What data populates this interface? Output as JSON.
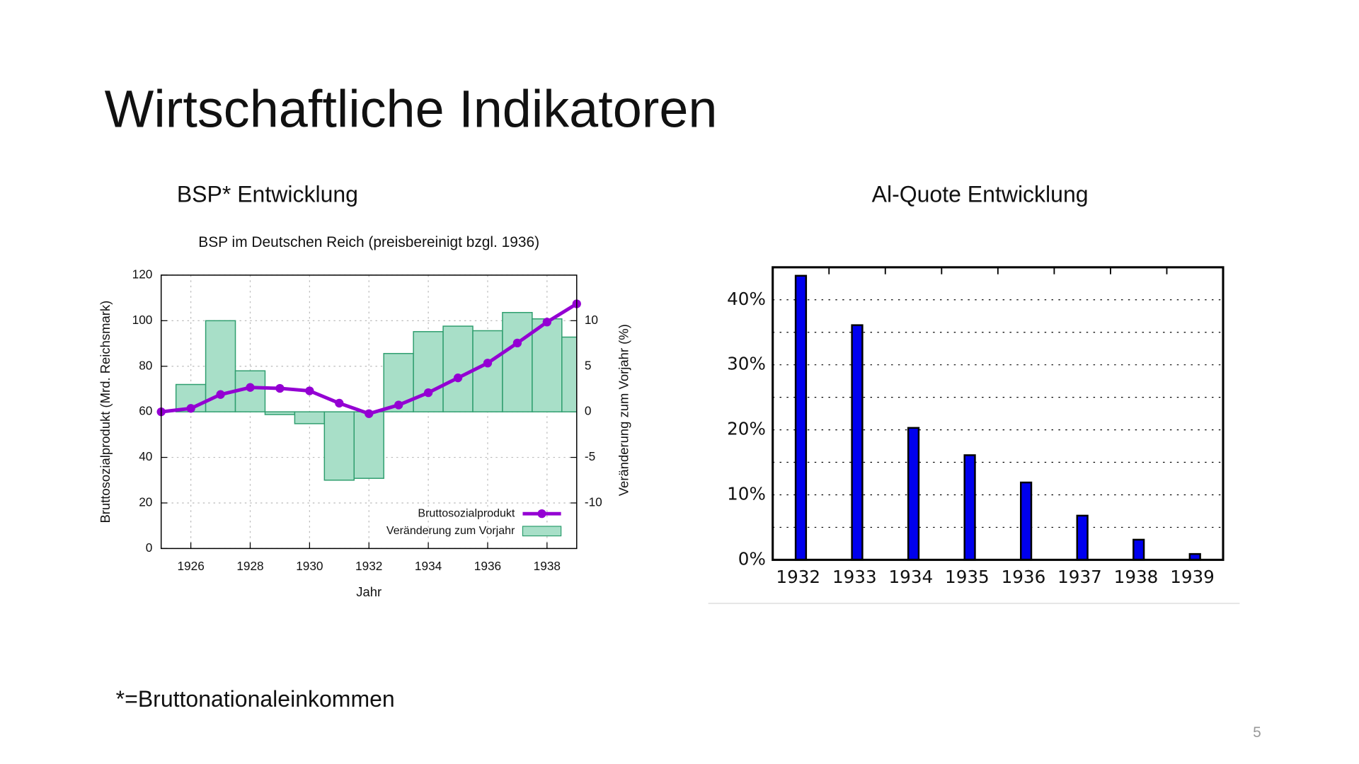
{
  "title": "Wirtschaftliche Indikatoren",
  "footnote": "*=Bruttonationaleinkommen",
  "page_number": "5",
  "chart_data": [
    {
      "type": "combo",
      "heading": "BSP* Entwicklung",
      "title": "BSP im Deutschen Reich (preisbereinigt bzgl. 1936)",
      "x_label": "Jahr",
      "y_label": "Bruttosozialprodukt (Mrd. Reichsmark)",
      "y2_label": "Veränderung zum Vorjahr (%)",
      "x": [
        1925,
        1926,
        1927,
        1928,
        1929,
        1930,
        1931,
        1932,
        1933,
        1934,
        1935,
        1936,
        1937,
        1938,
        1939
      ],
      "xlim": [
        1925,
        1939
      ],
      "xticks": [
        1926,
        1928,
        1930,
        1932,
        1934,
        1936,
        1938
      ],
      "ylim": [
        0,
        120
      ],
      "yticks": [
        0,
        20,
        40,
        60,
        80,
        100,
        120
      ],
      "y2lim": [
        -15,
        15
      ],
      "y2ticks": [
        -10,
        -5,
        0,
        5,
        10
      ],
      "grid": true,
      "legend": "lower right",
      "series": [
        {
          "name": "Bruttosozialprodukt",
          "type": "line",
          "color": "#9400d3",
          "values": [
            60,
            61.5,
            67.6,
            70.7,
            70.3,
            69.2,
            63.8,
            59.2,
            63,
            68.4,
            74.9,
            81.4,
            90.2,
            99.4,
            107.4
          ]
        },
        {
          "name": "Veränderung zum Vorjahr",
          "type": "bar",
          "axis": "y2",
          "color": "#a8dfc8",
          "edge_color": "#2e9e6e",
          "values": [
            null,
            3,
            10,
            4.5,
            -0.3,
            -1.3,
            -7.5,
            -7.3,
            6.4,
            8.8,
            9.4,
            8.9,
            10.9,
            10.2,
            8.2
          ]
        }
      ]
    },
    {
      "type": "bar",
      "heading": "Al-Quote Entwicklung",
      "categories": [
        "1932",
        "1933",
        "1934",
        "1935",
        "1936",
        "1937",
        "1938",
        "1939"
      ],
      "values": [
        43.7,
        36.1,
        20.3,
        16.1,
        11.9,
        6.8,
        3.1,
        0.9
      ],
      "color": "#0000ee",
      "edge_color": "#000000",
      "ylim": [
        0,
        45
      ],
      "yticks": [
        {
          "value": 0,
          "label": "0%"
        },
        {
          "value": 10,
          "label": "10%"
        },
        {
          "value": 20,
          "label": "20%"
        },
        {
          "value": 30,
          "label": "30%"
        },
        {
          "value": 40,
          "label": "40%"
        }
      ],
      "minor_yticks": [
        5,
        15,
        25,
        35
      ],
      "grid": true
    }
  ]
}
